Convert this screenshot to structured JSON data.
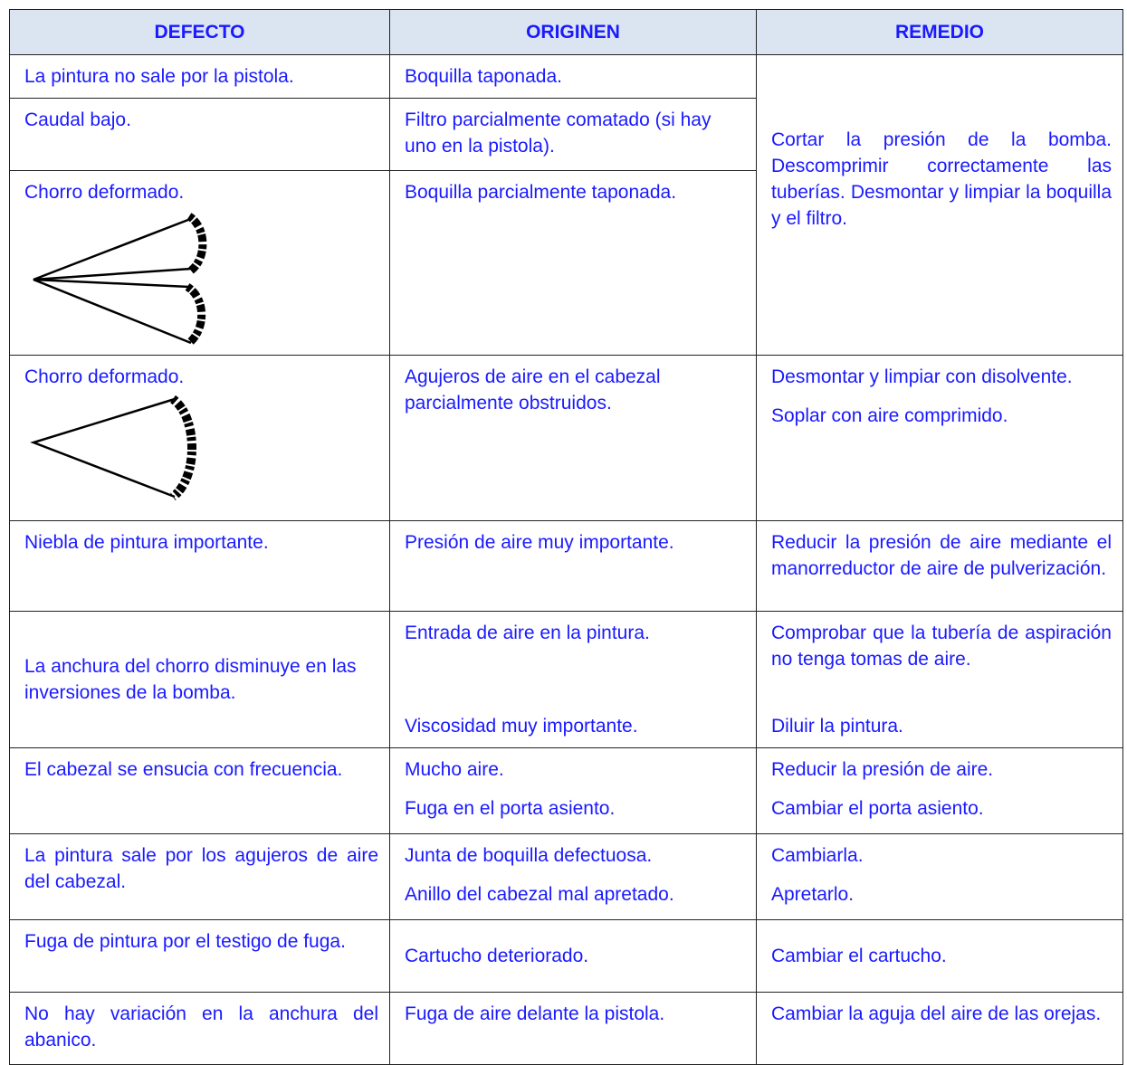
{
  "table": {
    "header": [
      "DEFECTO",
      "ORIGINEN",
      "REMEDIO"
    ],
    "merged_remedy": "Cortar la presión de la bomba. Descomprimir correctamente las tuberías. Desmontar y limpiar la boquilla y el filtro.",
    "rows": [
      {
        "defect": "La pintura no sale por la pistola.",
        "origin": [
          "Boquilla taponada."
        ]
      },
      {
        "defect": "Caudal bajo.",
        "origin": [
          "Filtro parcialmente comatado (si hay uno en la pistola)."
        ]
      },
      {
        "defect": "Chorro deformado.",
        "origin": [
          "Boquilla parcialmente taponada."
        ]
      },
      {
        "defect": "Chorro deformado.",
        "origin": [
          "Agujeros de aire en el cabezal parcialmente obstruidos."
        ],
        "remedy": [
          "Desmontar y limpiar con disolvente.",
          "Soplar con aire comprimido."
        ]
      },
      {
        "defect": "Niebla de pintura importante.",
        "origin": [
          "Presión de aire muy importante."
        ],
        "remedy": [
          "Reducir la presión de aire mediante el manorreductor de aire de pulverización."
        ]
      },
      {
        "defect": "La anchura del chorro disminuye en las inversiones de la bomba.",
        "origin": [
          "Entrada de aire en la pintura.",
          "Viscosidad muy importante."
        ],
        "remedy": [
          "Comprobar que la tubería de aspiración no tenga tomas de aire.",
          "Diluir la pintura."
        ]
      },
      {
        "defect": "El cabezal se ensucia con frecuencia.",
        "origin": [
          "Mucho aire.",
          "Fuga en el porta asiento."
        ],
        "remedy": [
          "Reducir la presión de aire.",
          "Cambiar el porta asiento."
        ]
      },
      {
        "defect": "La pintura sale por los agujeros de aire del cabezal.",
        "origin": [
          "Junta de boquilla defectuosa.",
          "Anillo del cabezal mal apretado."
        ],
        "remedy": [
          "Cambiarla.",
          "Apretarlo."
        ]
      },
      {
        "defect": "Fuga de pintura por el testigo de fuga.",
        "origin": [
          "Cartucho deteriorado."
        ],
        "remedy": [
          "Cambiar el cartucho."
        ]
      },
      {
        "defect": "No hay variación en la anchura del abanico.",
        "origin": [
          "Fuga de aire delante la pistola."
        ],
        "remedy": [
          "Cambiar la aguja del aire de las orejas."
        ]
      }
    ]
  }
}
